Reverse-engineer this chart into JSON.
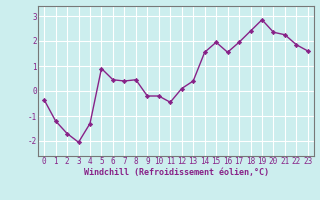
{
  "x": [
    0,
    1,
    2,
    3,
    4,
    5,
    6,
    7,
    8,
    9,
    10,
    11,
    12,
    13,
    14,
    15,
    16,
    17,
    18,
    19,
    20,
    21,
    22,
    23
  ],
  "y": [
    -0.35,
    -1.2,
    -1.7,
    -2.05,
    -1.3,
    0.9,
    0.45,
    0.4,
    0.45,
    -0.2,
    -0.2,
    -0.45,
    0.1,
    0.4,
    1.55,
    1.95,
    1.55,
    1.95,
    2.4,
    2.85,
    2.35,
    2.25,
    1.85,
    1.6
  ],
  "line_color": "#882288",
  "marker": "D",
  "marker_size": 2.2,
  "linewidth": 1.0,
  "xlabel": "Windchill (Refroidissement éolien,°C)",
  "xlabel_fontsize": 6.0,
  "bg_color": "#cceeee",
  "grid_color": "#ffffff",
  "ylim": [
    -2.6,
    3.4
  ],
  "xlim": [
    -0.5,
    23.5
  ],
  "yticks": [
    -2,
    -1,
    0,
    1,
    2,
    3
  ],
  "xticks": [
    0,
    1,
    2,
    3,
    4,
    5,
    6,
    7,
    8,
    9,
    10,
    11,
    12,
    13,
    14,
    15,
    16,
    17,
    18,
    19,
    20,
    21,
    22,
    23
  ],
  "tick_fontsize": 5.5,
  "spine_color": "#777777"
}
